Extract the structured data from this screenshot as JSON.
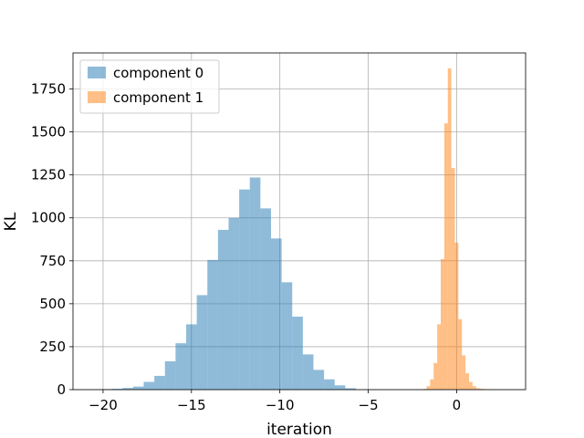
{
  "chart_data": {
    "type": "bar",
    "title": "",
    "xlabel": "iteration",
    "ylabel": "KL",
    "xlim": [
      -21.7,
      3.9
    ],
    "ylim": [
      0,
      1960
    ],
    "xticks": [
      -20,
      -15,
      -10,
      -5,
      0
    ],
    "xtick_labels": [
      "−20",
      "−15",
      "−10",
      "−5",
      "0"
    ],
    "yticks": [
      0,
      250,
      500,
      750,
      1000,
      1250,
      1500,
      1750
    ],
    "yticks_labels": [
      "0",
      "250",
      "500",
      "750",
      "1000",
      "1250",
      "1500",
      "1750"
    ],
    "grid": true,
    "legend_position": "top-left",
    "series": [
      {
        "name": "component 0",
        "color": "#1f77b4",
        "alpha": 0.5,
        "bin_width": 0.6,
        "bins": [
          {
            "x0": -20.1,
            "count": 3
          },
          {
            "x0": -19.5,
            "count": 5
          },
          {
            "x0": -18.9,
            "count": 10
          },
          {
            "x0": -18.3,
            "count": 18
          },
          {
            "x0": -17.7,
            "count": 45
          },
          {
            "x0": -17.1,
            "count": 80
          },
          {
            "x0": -16.5,
            "count": 165
          },
          {
            "x0": -15.9,
            "count": 270
          },
          {
            "x0": -15.3,
            "count": 380
          },
          {
            "x0": -14.7,
            "count": 550
          },
          {
            "x0": -14.1,
            "count": 755
          },
          {
            "x0": -13.5,
            "count": 930
          },
          {
            "x0": -12.9,
            "count": 1000
          },
          {
            "x0": -12.3,
            "count": 1165
          },
          {
            "x0": -11.7,
            "count": 1235
          },
          {
            "x0": -11.1,
            "count": 1055
          },
          {
            "x0": -10.5,
            "count": 880
          },
          {
            "x0": -9.9,
            "count": 625
          },
          {
            "x0": -9.3,
            "count": 425
          },
          {
            "x0": -8.7,
            "count": 205
          },
          {
            "x0": -8.1,
            "count": 115
          },
          {
            "x0": -7.5,
            "count": 60
          },
          {
            "x0": -6.9,
            "count": 25
          },
          {
            "x0": -6.3,
            "count": 8
          }
        ]
      },
      {
        "name": "component 1",
        "color": "#ff7f0e",
        "alpha": 0.5,
        "bin_width": 0.2,
        "bins": [
          {
            "x0": -1.9,
            "count": 4
          },
          {
            "x0": -1.7,
            "count": 20
          },
          {
            "x0": -1.5,
            "count": 60
          },
          {
            "x0": -1.3,
            "count": 155
          },
          {
            "x0": -1.1,
            "count": 380
          },
          {
            "x0": -0.9,
            "count": 760
          },
          {
            "x0": -0.7,
            "count": 1550
          },
          {
            "x0": -0.5,
            "count": 1870
          },
          {
            "x0": -0.3,
            "count": 1290
          },
          {
            "x0": -0.1,
            "count": 855
          },
          {
            "x0": 0.1,
            "count": 410
          },
          {
            "x0": 0.3,
            "count": 200
          },
          {
            "x0": 0.5,
            "count": 95
          },
          {
            "x0": 0.7,
            "count": 45
          },
          {
            "x0": 0.9,
            "count": 20
          },
          {
            "x0": 1.1,
            "count": 8
          },
          {
            "x0": 1.3,
            "count": 5
          },
          {
            "x0": 1.5,
            "count": 3
          },
          {
            "x0": 1.7,
            "count": 2
          },
          {
            "x0": 1.9,
            "count": 1
          }
        ]
      }
    ]
  }
}
